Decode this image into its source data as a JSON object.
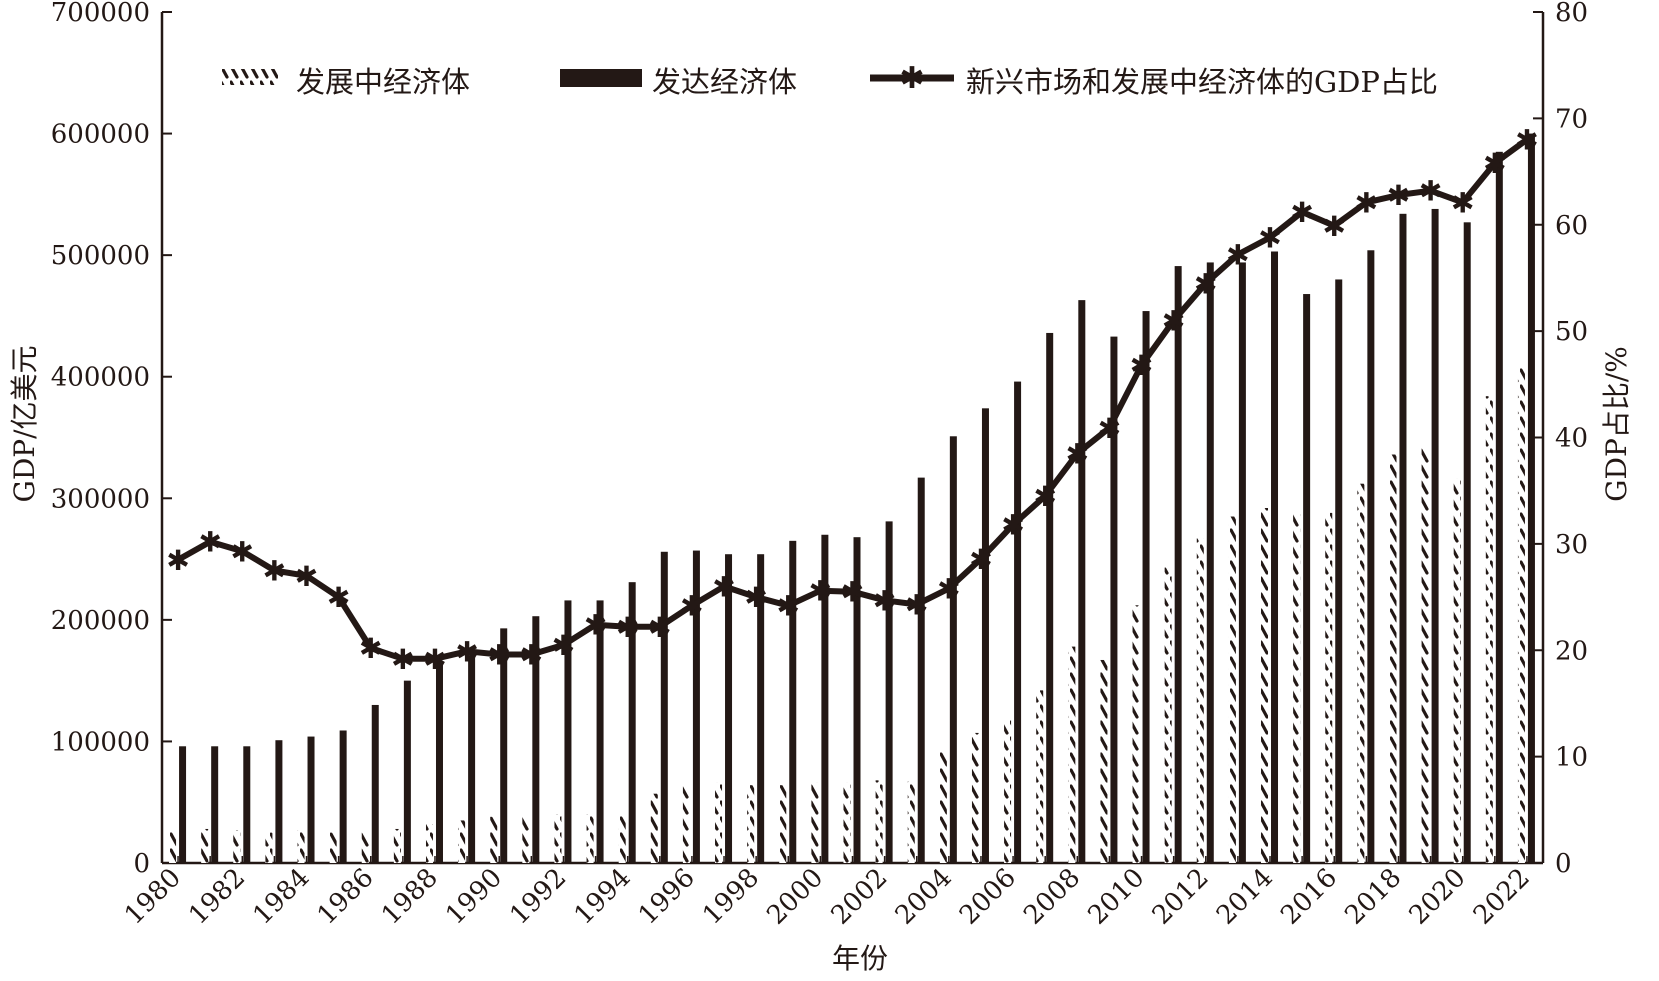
{
  "chart_data": {
    "type": "bar",
    "xlabel": "年份",
    "ylabel_left": "GDP/亿美元",
    "ylabel_right": "GDP占比/%",
    "ylim_left": [
      0,
      700000
    ],
    "ylim_right": [
      0,
      80
    ],
    "yticks_left": [
      0,
      100000,
      200000,
      300000,
      400000,
      500000,
      600000,
      700000
    ],
    "yticks_right": [
      0,
      10,
      20,
      30,
      40,
      50,
      60,
      70,
      80
    ],
    "x_tick_labels": [
      "1980",
      "1982",
      "1984",
      "1986",
      "1988",
      "1990",
      "1992",
      "1994",
      "1996",
      "1998",
      "2000",
      "2002",
      "2004",
      "2006",
      "2008",
      "2010",
      "2012",
      "2014",
      "2016",
      "2018",
      "2020",
      "2022"
    ],
    "categories": [
      "1980",
      "1981",
      "1982",
      "1983",
      "1984",
      "1985",
      "1986",
      "1987",
      "1988",
      "1989",
      "1990",
      "1991",
      "1992",
      "1993",
      "1994",
      "1995",
      "1996",
      "1997",
      "1998",
      "1999",
      "2000",
      "2001",
      "2002",
      "2003",
      "2004",
      "2005",
      "2006",
      "2007",
      "2008",
      "2009",
      "2010",
      "2011",
      "2012",
      "2013",
      "2014",
      "2015",
      "2016",
      "2017",
      "2018",
      "2019",
      "2020",
      "2021",
      "2022"
    ],
    "legend": {
      "developing": "发展中经济体",
      "developed": "发达经济体",
      "share": "新兴市场和发展中经济体的GDP占比"
    },
    "series": [
      {
        "key": "developing",
        "name": "发展中经济体",
        "style": "hatched-bar",
        "axis": "left",
        "values": [
          26000,
          28000,
          27000,
          25000,
          27000,
          25000,
          25000,
          28000,
          32000,
          35000,
          38000,
          38000,
          40000,
          40000,
          40000,
          57000,
          63000,
          66000,
          64000,
          64000,
          66000,
          66000,
          68000,
          67000,
          91000,
          107000,
          118000,
          142000,
          178000,
          167000,
          212000,
          243000,
          267000,
          285000,
          292000,
          287000,
          288000,
          312000,
          336000,
          342000,
          316000,
          384000,
          408000
        ]
      },
      {
        "key": "developed",
        "name": "发达经济体",
        "style": "solid-bar",
        "axis": "left",
        "values": [
          96000,
          96000,
          96000,
          101000,
          104000,
          109000,
          130000,
          150000,
          166000,
          171000,
          193000,
          203000,
          216000,
          216000,
          231000,
          256000,
          257000,
          254000,
          254000,
          265000,
          270000,
          268000,
          281000,
          317000,
          351000,
          374000,
          396000,
          436000,
          463000,
          433000,
          454000,
          491000,
          494000,
          494000,
          503000,
          468000,
          480000,
          504000,
          534000,
          538000,
          527000,
          585000,
          600000
        ]
      },
      {
        "key": "share",
        "name": "新兴市场和发展中经济体的GDP占比",
        "style": "line-with-star-markers",
        "axis": "right",
        "values": [
          28.5,
          30.2,
          29.3,
          27.5,
          27.0,
          25.0,
          20.2,
          19.2,
          19.2,
          19.9,
          19.6,
          19.6,
          20.5,
          22.4,
          22.2,
          22.2,
          24.2,
          26.0,
          25.0,
          24.2,
          25.6,
          25.5,
          24.7,
          24.3,
          25.8,
          28.6,
          31.8,
          34.5,
          38.5,
          40.9,
          46.8,
          51.0,
          54.5,
          57.2,
          58.8,
          61.2,
          59.9,
          62.1,
          62.8,
          63.2,
          62.1,
          65.8,
          68.0
        ]
      }
    ],
    "colors": {
      "ink": "#231815",
      "background": "#ffffff"
    }
  }
}
